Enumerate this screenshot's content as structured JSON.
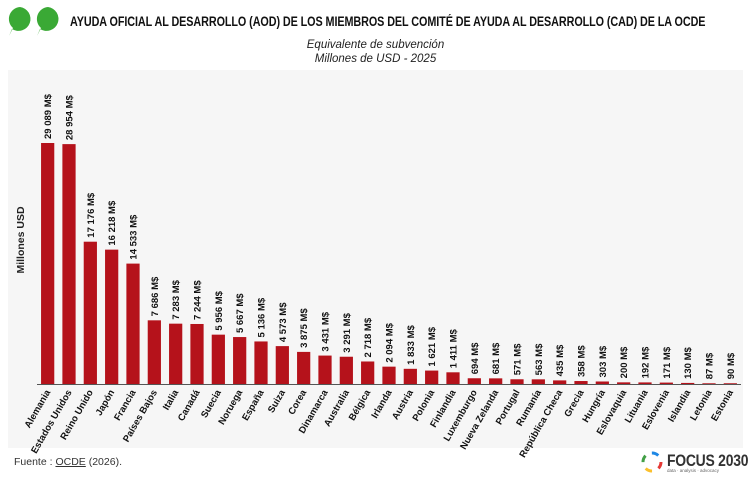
{
  "header": {
    "title": "AYUDA OFICIAL AL DESARROLLO (AOD) DE LOS MIEMBROS DEL COMITÉ DE AYUDA AL DESARROLLO (CAD) DE LA OCDE",
    "subtitle_line1": "Equivalente de subvención",
    "subtitle_line2": "Millones de USD - 2025",
    "logo_icon": "speech-bubbles-icon"
  },
  "footer": {
    "source_prefix": "Fuente : ",
    "source_link": "OCDE",
    "source_suffix": " (2026).",
    "brand_name": "FOCUS 2030",
    "brand_tagline": "data · analysis · advocacy"
  },
  "colors": {
    "bar": "#b5121b",
    "logo_green": "#3aa935",
    "background": "#f6f6f6"
  },
  "chart_data": {
    "type": "bar",
    "ylabel": "Millones USD",
    "ylim": [
      0,
      30000
    ],
    "grid": false,
    "legend": "none",
    "categories": [
      "Alemania",
      "Estados Unidos",
      "Reino Unido",
      "Japón",
      "Francia",
      "Países Bajos",
      "Italia",
      "Canadá",
      "Suecia",
      "Noruega",
      "España",
      "Suiza",
      "Corea",
      "Dinamarca",
      "Australia",
      "Bélgica",
      "Irlanda",
      "Austria",
      "Polonia",
      "Finlandia",
      "Luxemburgo",
      "Nueva Zelanda",
      "Portugal",
      "Rumanía",
      "República Checa",
      "Grecia",
      "Hungría",
      "Eslovaquia",
      "Lituania",
      "Eslovenia",
      "Islandia",
      "Letonia",
      "Estonia"
    ],
    "values": [
      29089,
      28954,
      17176,
      16218,
      14533,
      7686,
      7283,
      7244,
      5956,
      5667,
      5136,
      4573,
      3875,
      3431,
      3291,
      2718,
      2094,
      1833,
      1621,
      1411,
      694,
      681,
      571,
      563,
      435,
      358,
      303,
      200,
      192,
      171,
      130,
      87,
      90
    ],
    "value_labels": [
      "29 089 M$",
      "28 954 M$",
      "17 176 M$",
      "16 218 M$",
      "14 533 M$",
      "7 686 M$",
      "7 283 M$",
      "7 244 M$",
      "5 956 M$",
      "5 667 M$",
      "5 136 M$",
      "4 573 M$",
      "3 875 M$",
      "3 431 M$",
      "3 291 M$",
      "2 718 M$",
      "2 094 M$",
      "1 833 M$",
      "1 621 M$",
      "1 411 M$",
      "694 M$",
      "681 M$",
      "571 M$",
      "563 M$",
      "435 M$",
      "358 M$",
      "303 M$",
      "200 M$",
      "192 M$",
      "171 M$",
      "130 M$",
      "87 M$",
      "90 M$"
    ]
  }
}
